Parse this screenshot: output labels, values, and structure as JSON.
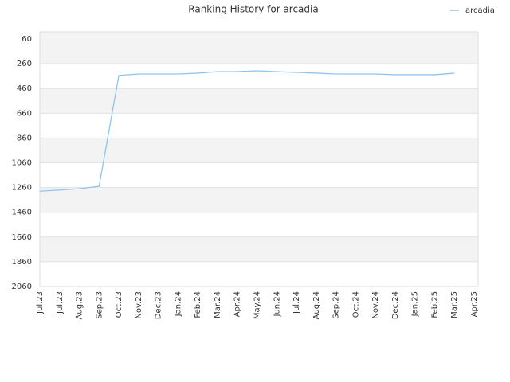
{
  "chart_data": {
    "type": "line",
    "title": "Ranking History for arcadia",
    "categories": [
      "Jul.23",
      "Jul.23",
      "Aug.23",
      "Sep.23",
      "Oct.23",
      "Nov.23",
      "Dec.23",
      "Jan.24",
      "Feb.24",
      "Mar.24",
      "Apr.24",
      "May.24",
      "Jun.24",
      "Jul.24",
      "Aug.24",
      "Sep.24",
      "Oct.24",
      "Nov.24",
      "Dec.24",
      "Jan.25",
      "Feb.25",
      "Mar.25",
      "Apr.25"
    ],
    "series": [
      {
        "name": "arcadia",
        "color": "#90c4f0",
        "values": [
          1290,
          1280,
          1270,
          1250,
          355,
          343,
          343,
          343,
          336,
          324,
          324,
          317,
          324,
          330,
          336,
          343,
          343,
          343,
          349,
          349,
          349,
          336,
          null
        ]
      }
    ],
    "ylim": [
      2060,
      2
    ],
    "yticks": [
      60,
      260,
      460,
      660,
      860,
      1060,
      1260,
      1460,
      1660,
      1860,
      2060
    ],
    "grid": true,
    "legend": "top-right"
  }
}
